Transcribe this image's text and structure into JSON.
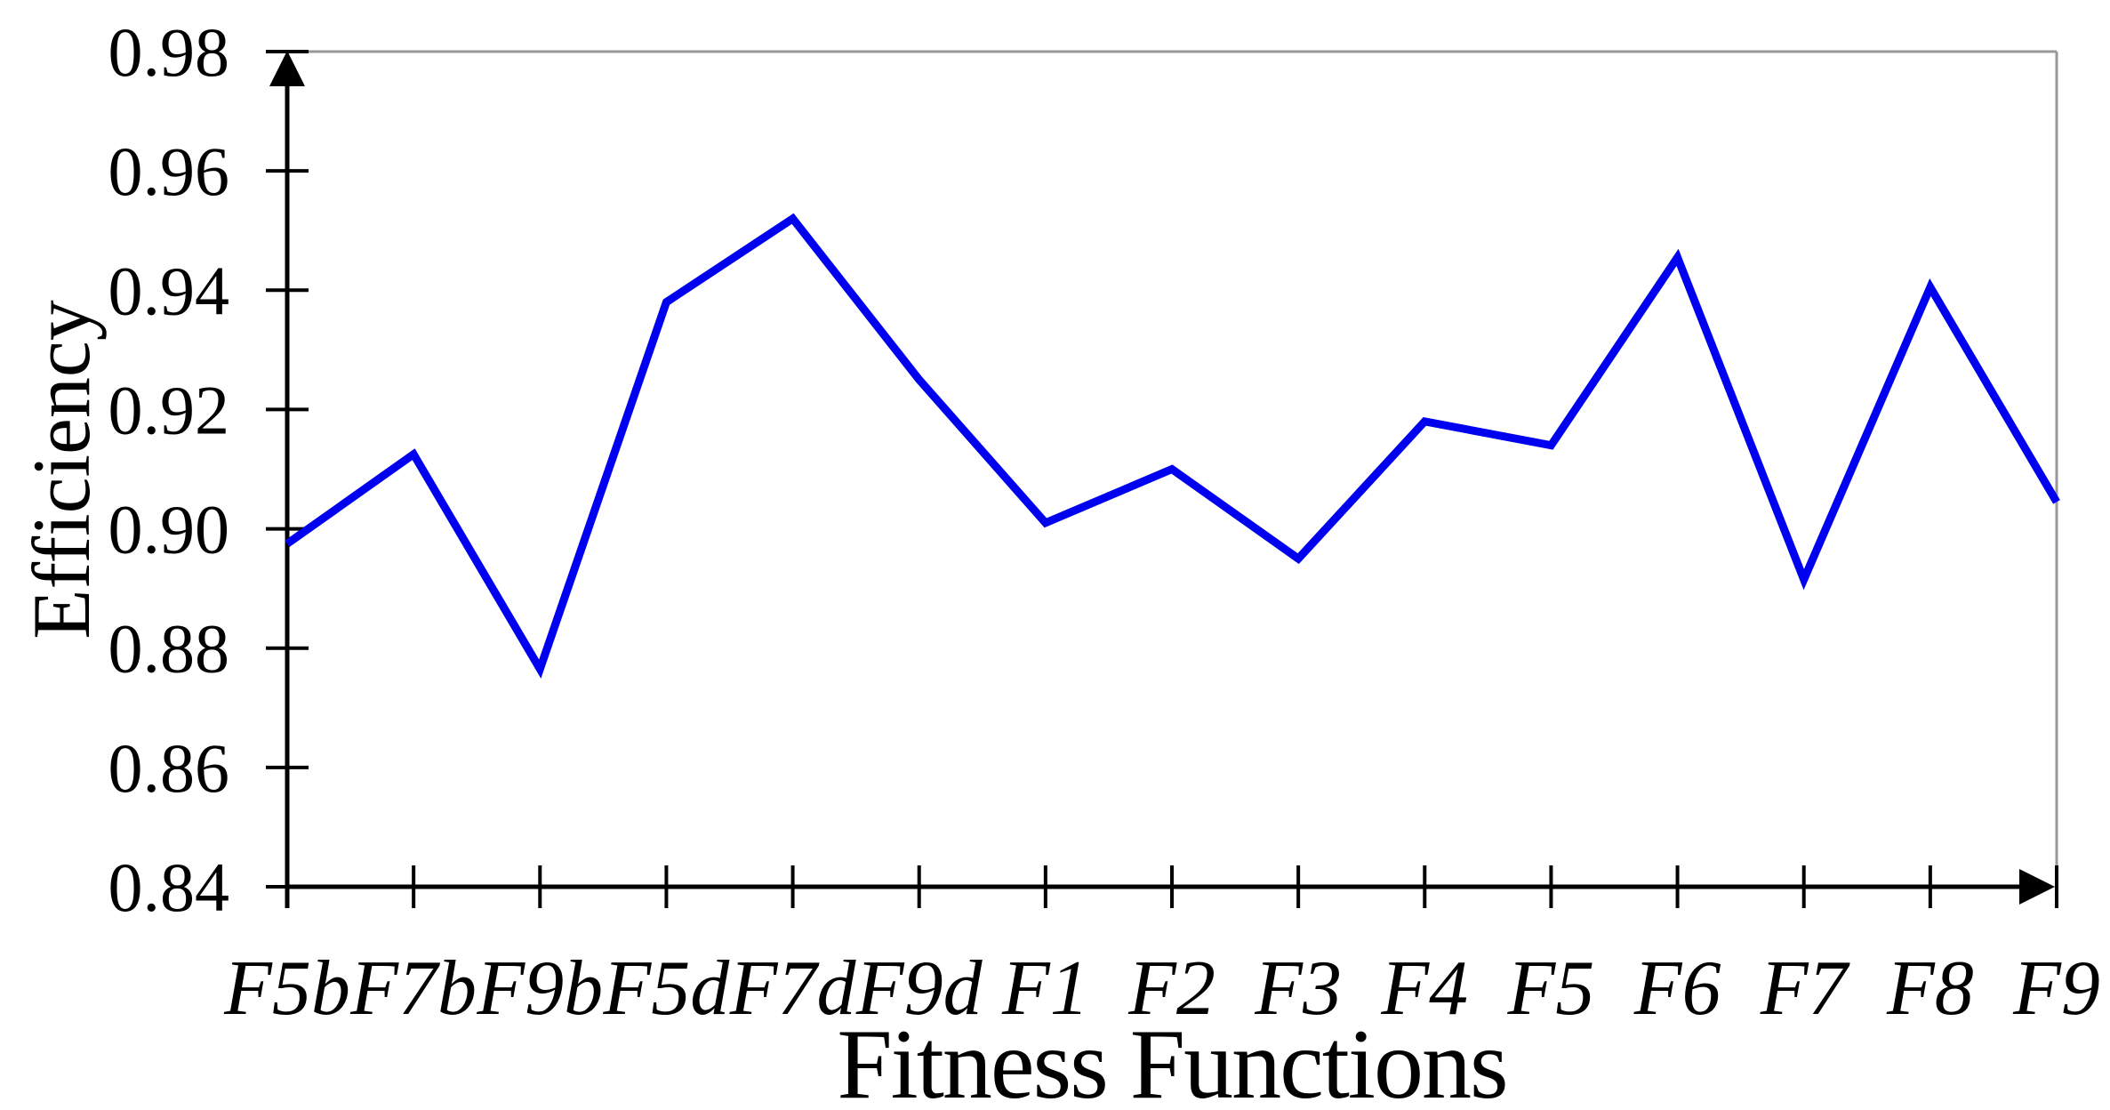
{
  "chart_data": {
    "type": "line",
    "title": "",
    "xlabel": "Fitness Functions",
    "ylabel": "Efficiency",
    "categories": [
      "F5b",
      "F7b",
      "F9b",
      "F5d",
      "F7d",
      "F9d",
      "F1",
      "F2",
      "F3",
      "F4",
      "F5",
      "F6",
      "F7",
      "F8",
      "F9"
    ],
    "values": [
      0.8975,
      0.9125,
      0.8765,
      0.938,
      0.952,
      0.925,
      0.901,
      0.91,
      0.895,
      0.918,
      0.914,
      0.9455,
      0.8915,
      0.9405,
      0.9045
    ],
    "ylim": [
      0.84,
      0.98
    ],
    "ytick_step": 0.02,
    "ytick_labels": [
      "0.98",
      "0.96",
      "0.94",
      "0.92",
      "0.90",
      "0.88",
      "0.86",
      "0.84"
    ],
    "grid": false,
    "legend": "none",
    "line_color": "#0000f0",
    "axis_color": "#000000",
    "border_color": "#999999"
  }
}
